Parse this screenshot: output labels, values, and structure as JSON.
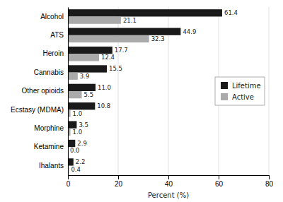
{
  "chart_data": {
    "type": "bar",
    "orientation": "horizontal",
    "categories": [
      "Ihalants",
      "Ketamine",
      "Morphine",
      "Ecstasy (MDMA)",
      "Other opioids",
      "Cannabis",
      "Heroin",
      "ATS",
      "Alcohol"
    ],
    "series": [
      {
        "name": "Lifetime",
        "color": "#1a1a1a",
        "values": [
          2.2,
          2.9,
          3.5,
          10.8,
          11.0,
          15.5,
          17.7,
          44.9,
          61.4
        ],
        "value_labels": [
          "2.2",
          "2.9",
          "3.5",
          "10.8",
          "11.0",
          "15.5",
          "17.7",
          "44.9",
          "61.4"
        ]
      },
      {
        "name": "Active",
        "color": "#aaaaaa",
        "values": [
          0.4,
          0.0,
          1.0,
          1.0,
          5.5,
          3.9,
          12.4,
          32.3,
          21.1
        ],
        "value_labels": [
          "0.4",
          "0.0",
          "1.0",
          "1.0",
          "5.5",
          "3.9",
          "12.4",
          "32.3",
          "21.1"
        ]
      }
    ],
    "x_label": "Percent (%)",
    "xlim": [
      0,
      80
    ],
    "xticks": [
      0,
      20,
      40,
      60,
      80
    ],
    "grid": true,
    "legend": "right",
    "data_labels": true
  }
}
